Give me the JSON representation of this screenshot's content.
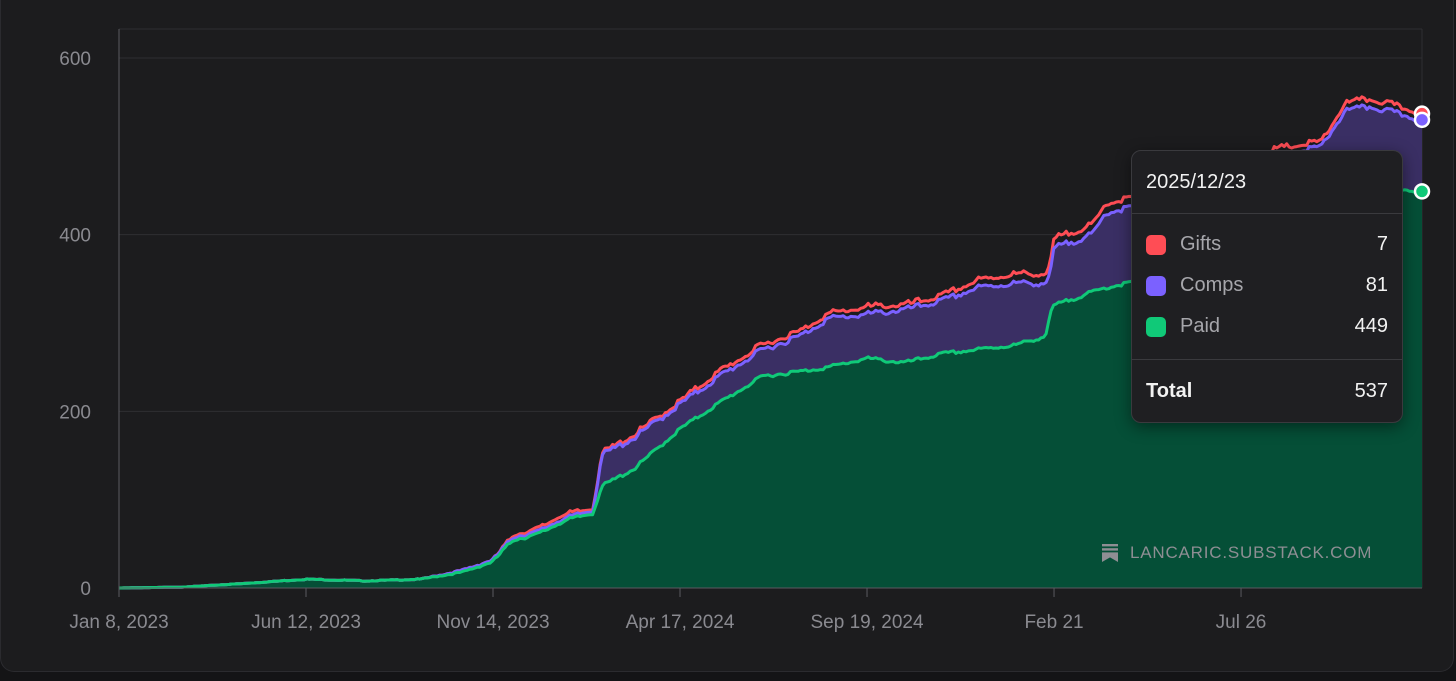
{
  "chart_data": {
    "type": "area",
    "stacked": true,
    "title": "",
    "xlabel": "",
    "ylabel": "",
    "ylim": [
      0,
      600
    ],
    "yticks": [
      0,
      200,
      400,
      600
    ],
    "xlim": [
      "2023-01-08",
      "2025-12-23"
    ],
    "xticks": [
      {
        "date": "2023-01-08",
        "label": "Jan 8, 2023"
      },
      {
        "date": "2023-06-12",
        "label": "Jun 12, 2023"
      },
      {
        "date": "2023-11-14",
        "label": "Nov 14, 2023"
      },
      {
        "date": "2024-04-17",
        "label": "Apr 17, 2024"
      },
      {
        "date": "2024-09-19",
        "label": "Sep 19, 2024"
      },
      {
        "date": "2025-02-21",
        "label": "Feb 21"
      },
      {
        "date": "2025-07-26",
        "label": "Jul 26"
      }
    ],
    "grid": true,
    "legend": "tooltip",
    "colors": {
      "Gifts": "#ff4d55",
      "Comps": "#7b61ff",
      "Paid": "#10c978",
      "background": "#1c1c1e",
      "grid": "#2e2e32",
      "compsFill": "#3a2f64",
      "paidFill": "#054f37"
    },
    "dates": [
      "2023-01-08",
      "2023-03-01",
      "2023-04-20",
      "2023-06-12",
      "2023-08-01",
      "2023-09-15",
      "2023-10-20",
      "2023-11-14",
      "2023-12-01",
      "2023-12-20",
      "2024-01-10",
      "2024-02-05",
      "2024-02-12",
      "2024-03-10",
      "2024-04-17",
      "2024-05-20",
      "2024-06-25",
      "2024-07-25",
      "2024-08-18",
      "2024-09-19",
      "2024-10-20",
      "2024-11-20",
      "2024-12-20",
      "2025-01-20",
      "2025-02-14",
      "2025-02-18",
      "2025-02-21",
      "2025-03-25",
      "2025-04-05",
      "2025-05-10",
      "2025-06-15",
      "2025-07-26",
      "2025-08-30",
      "2025-10-01",
      "2025-10-20",
      "2025-11-10",
      "2025-12-23"
    ],
    "series": [
      {
        "name": "Paid",
        "values": [
          0,
          1,
          5,
          10,
          8,
          10,
          18,
          30,
          55,
          60,
          75,
          85,
          115,
          135,
          180,
          210,
          240,
          245,
          250,
          260,
          255,
          265,
          270,
          275,
          285,
          310,
          320,
          335,
          340,
          350,
          360,
          385,
          410,
          430,
          445,
          455,
          449
        ]
      },
      {
        "name": "Comps",
        "values": [
          0,
          0,
          0,
          0,
          0,
          0,
          2,
          2,
          3,
          3,
          3,
          3,
          35,
          35,
          28,
          30,
          30,
          40,
          55,
          50,
          60,
          60,
          70,
          70,
          60,
          45,
          65,
          65,
          85,
          85,
          90,
          90,
          80,
          70,
          95,
          90,
          81
        ]
      },
      {
        "name": "Gifts",
        "values": [
          0,
          0,
          0,
          0,
          0,
          0,
          0,
          0,
          2,
          3,
          4,
          2,
          2,
          3,
          3,
          5,
          5,
          5,
          5,
          8,
          5,
          5,
          8,
          10,
          10,
          10,
          10,
          10,
          10,
          10,
          10,
          10,
          8,
          5,
          8,
          8,
          7
        ]
      }
    ]
  },
  "tooltip": {
    "date": "2025/12/23",
    "rows": [
      {
        "label": "Gifts",
        "value": "7",
        "color": "#ff4d55"
      },
      {
        "label": "Comps",
        "value": "81",
        "color": "#7b61ff"
      },
      {
        "label": "Paid",
        "value": "449",
        "color": "#10c978"
      }
    ],
    "total_label": "Total",
    "total_value": "537"
  },
  "watermark": {
    "text": "LANCARIC.SUBSTACK.COM",
    "icon": "substack-icon"
  }
}
